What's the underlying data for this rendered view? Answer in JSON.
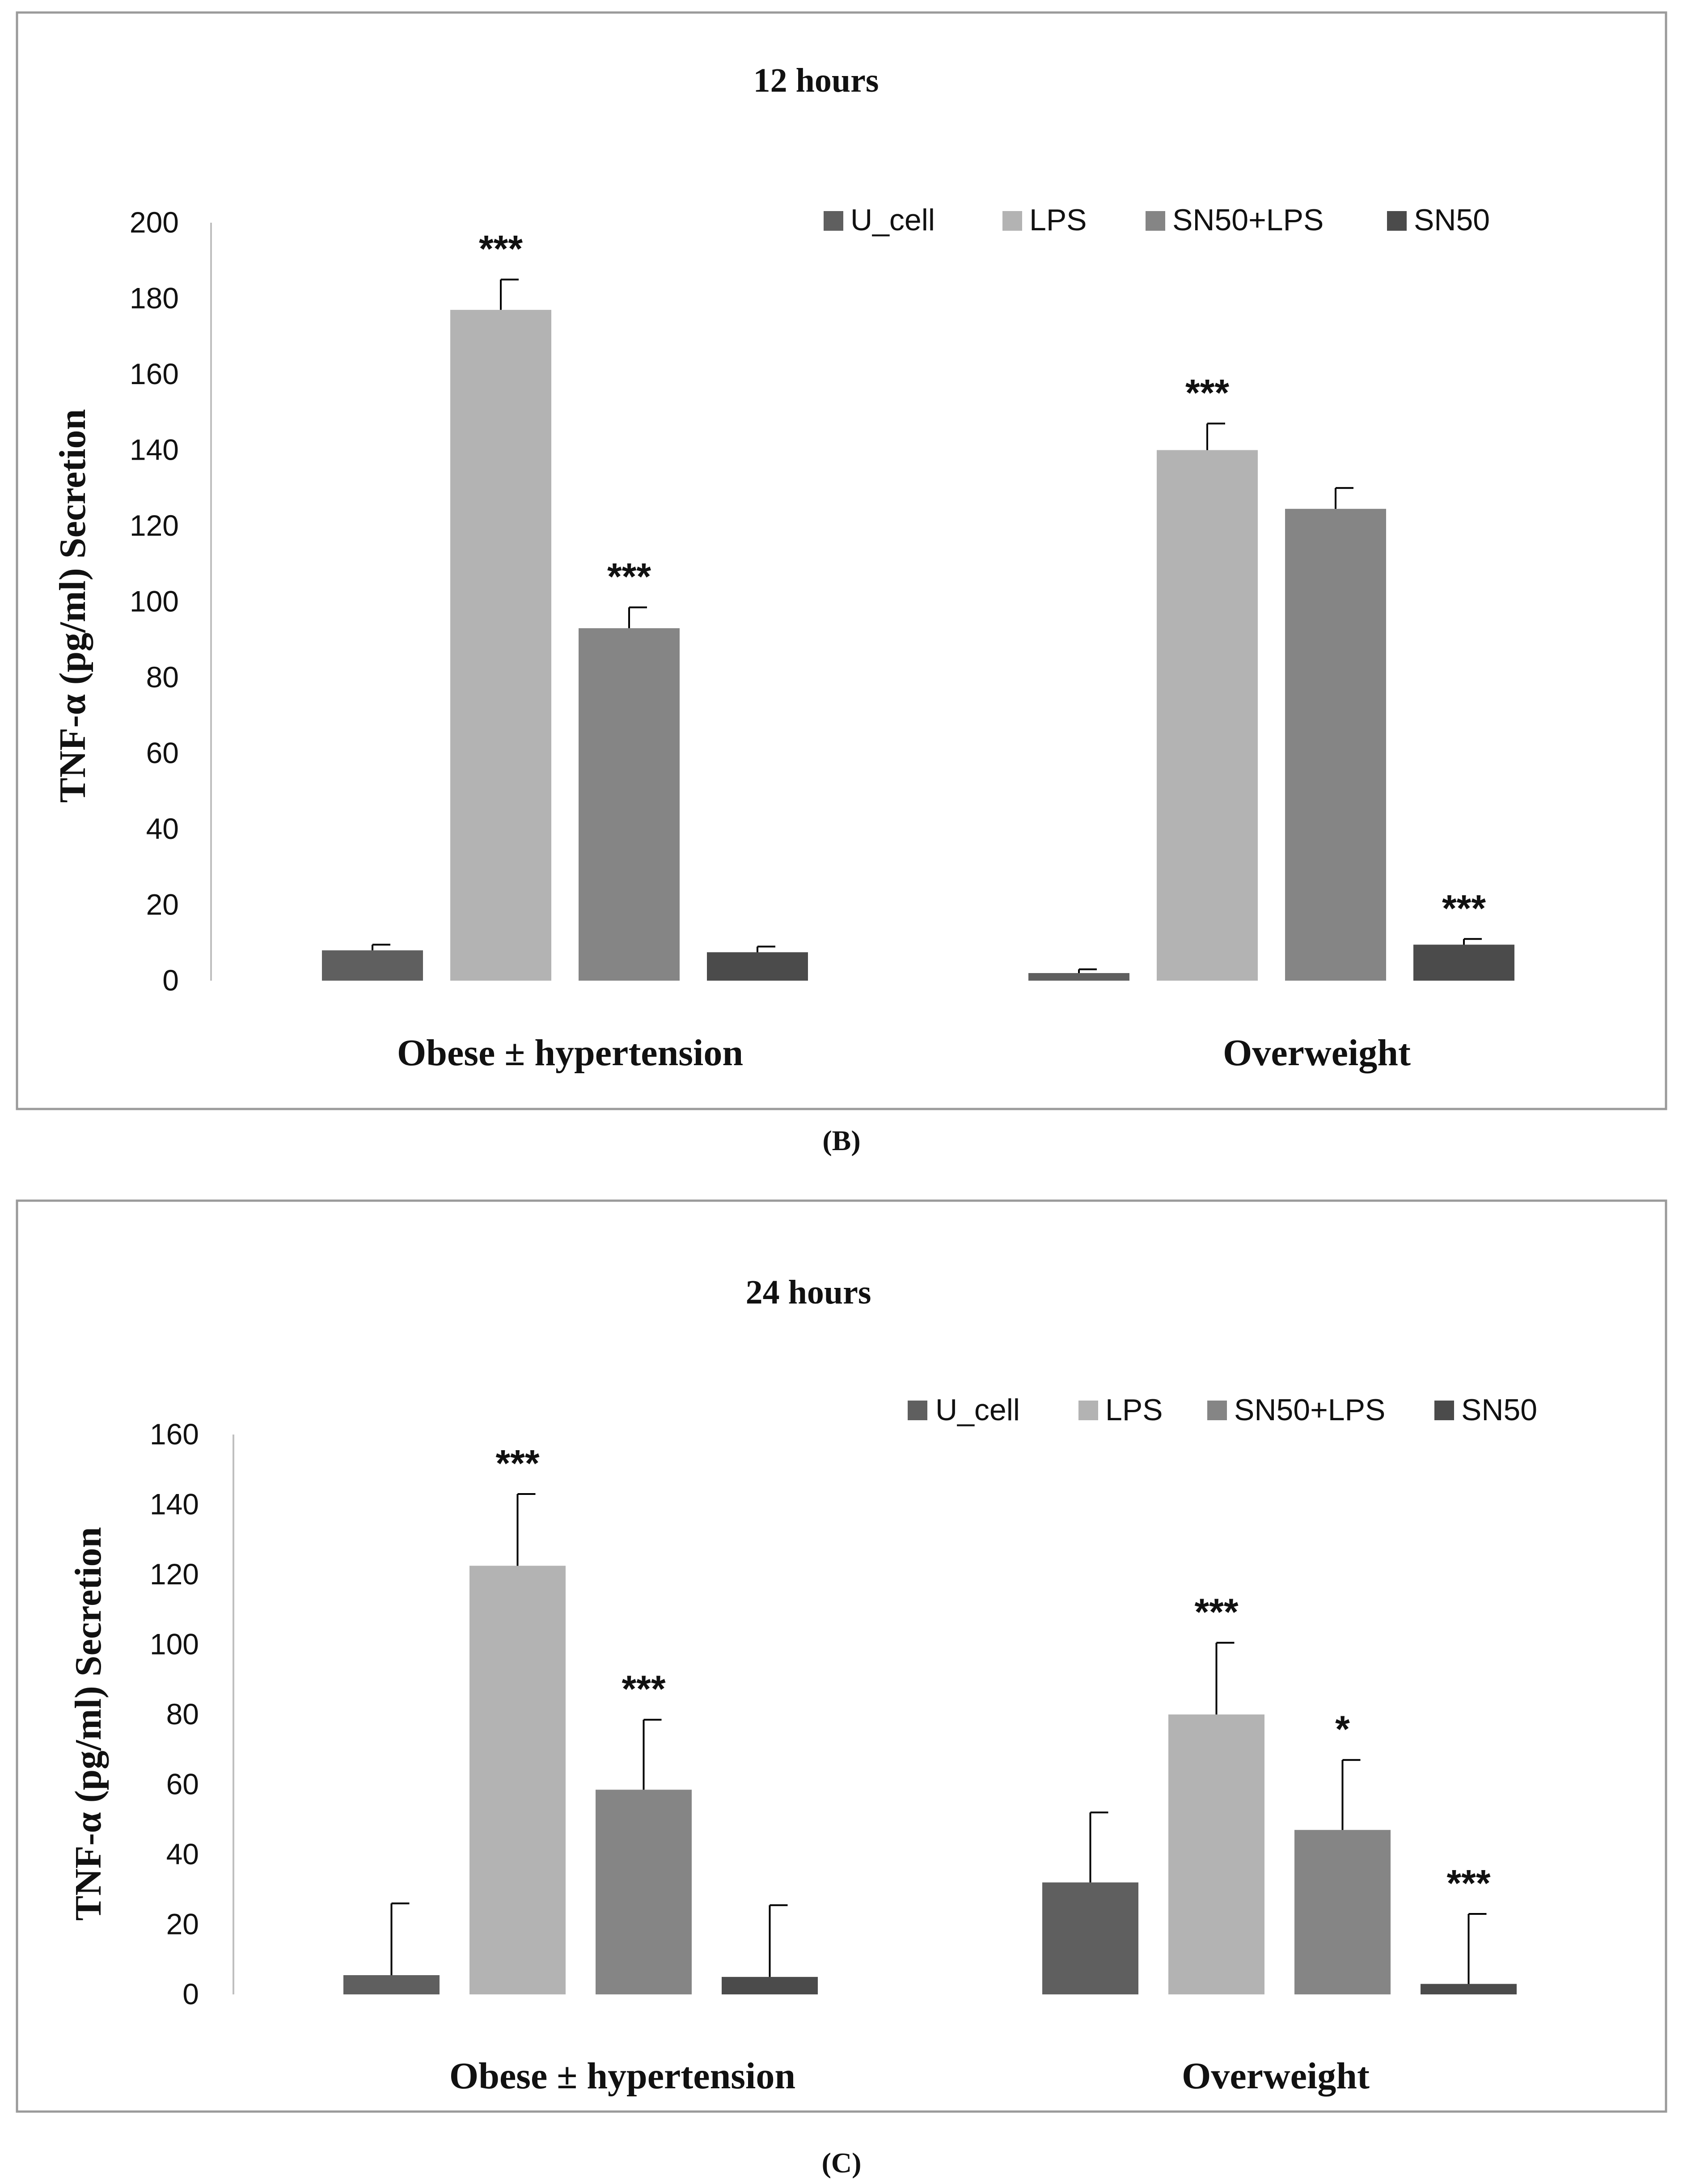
{
  "colors": {
    "U_cell": "#5f5f5f",
    "LPS": "#b3b3b3",
    "SN50+LPS": "#858585",
    "SN50": "#4b4b4b",
    "frame": "#9a9a9a",
    "axis": "#bfbfbf",
    "text": "#111111"
  },
  "chart_data": [
    {
      "type": "bar",
      "title": "12 hours",
      "caption": "(B)",
      "ylabel": "TNF-α (pg/ml) Secretion",
      "xlabel": "",
      "ylim": [
        0,
        200
      ],
      "yticks": [
        0,
        20,
        40,
        60,
        80,
        100,
        120,
        140,
        160,
        180,
        200
      ],
      "legend_position": "top-right",
      "categories": [
        "Obese ± hypertension",
        "Overweight"
      ],
      "series": [
        {
          "name": "U_cell",
          "values": [
            8,
            2
          ],
          "errors": [
            1.5,
            1
          ],
          "significance": [
            "",
            ""
          ]
        },
        {
          "name": "LPS",
          "values": [
            177,
            140
          ],
          "errors": [
            8,
            7
          ],
          "significance": [
            "***",
            "***"
          ]
        },
        {
          "name": "SN50+LPS",
          "values": [
            93,
            124.5
          ],
          "errors": [
            5.5,
            5.5
          ],
          "significance": [
            "***",
            ""
          ]
        },
        {
          "name": "SN50",
          "values": [
            7.5,
            9.5
          ],
          "errors": [
            1.5,
            1.5
          ],
          "significance": [
            "",
            "***"
          ]
        }
      ]
    },
    {
      "type": "bar",
      "title": "24 hours",
      "caption": "(C)",
      "ylabel": "TNF-α (pg/ml) Secretion",
      "xlabel": "",
      "ylim": [
        0,
        160
      ],
      "yticks": [
        0,
        20,
        40,
        60,
        80,
        100,
        120,
        140,
        160
      ],
      "legend_position": "top-right",
      "categories": [
        "Obese ± hypertension",
        "Overweight"
      ],
      "series": [
        {
          "name": "U_cell",
          "values": [
            5.5,
            32
          ],
          "errors": [
            20.5,
            20
          ],
          "significance": [
            "",
            ""
          ]
        },
        {
          "name": "LPS",
          "values": [
            122.5,
            80
          ],
          "errors": [
            20.5,
            20.5
          ],
          "significance": [
            "***",
            "***"
          ]
        },
        {
          "name": "SN50+LPS",
          "values": [
            58.5,
            47
          ],
          "errors": [
            20,
            20
          ],
          "significance": [
            "***",
            "*"
          ]
        },
        {
          "name": "SN50",
          "values": [
            5,
            3
          ],
          "errors": [
            20.5,
            20
          ],
          "significance": [
            "",
            "***"
          ]
        }
      ]
    }
  ]
}
